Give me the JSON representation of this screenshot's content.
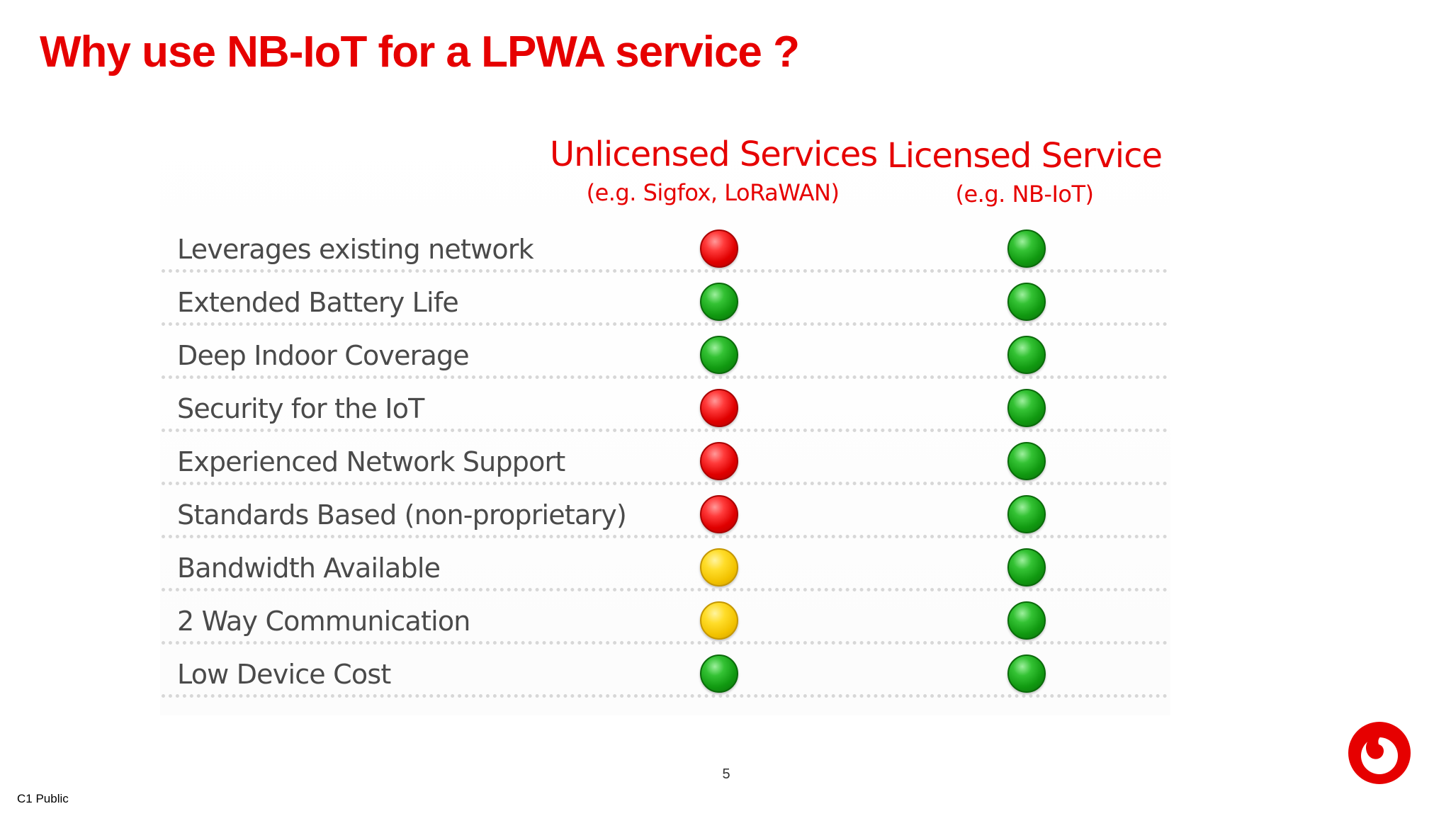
{
  "title": "Why use NB-IoT for a LPWA service ?",
  "columns": [
    {
      "heading": "Unlicensed Services",
      "subheading": "(e.g. Sigfox, LoRaWAN)"
    },
    {
      "heading": "Licensed Service",
      "subheading": "(e.g. NB-IoT)"
    }
  ],
  "rows": [
    {
      "label": "Leverages existing network",
      "unlicensed": "red",
      "licensed": "green"
    },
    {
      "label": "Extended Battery Life",
      "unlicensed": "green",
      "licensed": "green"
    },
    {
      "label": "Deep Indoor Coverage",
      "unlicensed": "green",
      "licensed": "green"
    },
    {
      "label": "Security for the IoT",
      "unlicensed": "red",
      "licensed": "green"
    },
    {
      "label": "Experienced Network Support",
      "unlicensed": "red",
      "licensed": "green"
    },
    {
      "label": "Standards Based (non-proprietary)",
      "unlicensed": "red",
      "licensed": "green"
    },
    {
      "label": "Bandwidth Available",
      "unlicensed": "yellow",
      "licensed": "green"
    },
    {
      "label": "2 Way Communication",
      "unlicensed": "yellow",
      "licensed": "green"
    },
    {
      "label": "Low Device Cost",
      "unlicensed": "green",
      "licensed": "green"
    }
  ],
  "status_colors": {
    "red": "#e00000",
    "green": "#119a11",
    "yellow": "#f2c200"
  },
  "accent_color": "#e60000",
  "page_number": "5",
  "classification": "C1 Public",
  "logo": "vodafone-logo"
}
